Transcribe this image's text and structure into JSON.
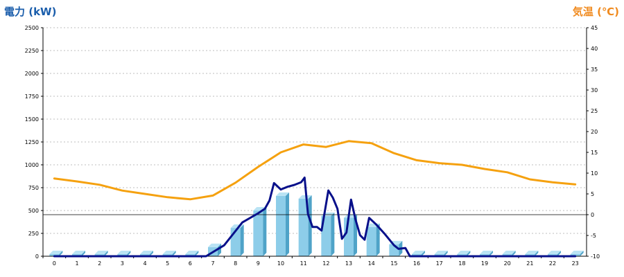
{
  "chart_data": {
    "type": "bar",
    "left_axis_title": "電力 (kW)",
    "right_axis_title": "気温 (℃)",
    "categories": [
      "0",
      "1",
      "2",
      "3",
      "4",
      "5",
      "6",
      "7",
      "8",
      "9",
      "10",
      "11",
      "12",
      "13",
      "14",
      "15",
      "16",
      "17",
      "18",
      "19",
      "20",
      "21",
      "22",
      "23"
    ],
    "left_ticks": [
      "0",
      "250",
      "500",
      "750",
      "1000",
      "1250",
      "1500",
      "1750",
      "2000",
      "2250",
      "2500"
    ],
    "right_ticks": [
      "-10",
      "-5",
      "0",
      "5",
      "10",
      "15",
      "20",
      "25",
      "30",
      "35",
      "40",
      "45"
    ],
    "ylim_left": [
      0,
      2500
    ],
    "ylim_right": [
      -10,
      45
    ],
    "grid": true,
    "series": [
      {
        "kind": "bar",
        "values": [
          0,
          0,
          0,
          0,
          0,
          0,
          0,
          100,
          310,
          500,
          660,
          630,
          440,
          420,
          320,
          130,
          0,
          0,
          0,
          0,
          0,
          0,
          0,
          0
        ]
      },
      {
        "kind": "line",
        "axis": "right",
        "x": [
          0,
          1,
          2,
          3,
          4,
          5,
          6,
          7,
          8,
          9,
          10,
          11,
          12,
          13,
          14,
          15,
          16,
          17,
          18,
          19,
          20,
          21,
          22,
          23
        ],
        "values": [
          8.7,
          8.0,
          7.2,
          5.8,
          5.0,
          4.2,
          3.7,
          4.6,
          7.7,
          11.5,
          15.0,
          16.9,
          16.3,
          17.7,
          17.2,
          14.8,
          13.1,
          12.4,
          12.0,
          11.0,
          10.2,
          8.5,
          7.8,
          7.3
        ]
      },
      {
        "kind": "line",
        "axis": "left",
        "x": [
          0,
          6.7,
          7.5,
          8.3,
          9,
          9.3,
          9.5,
          9.7,
          10,
          10.3,
          10.6,
          10.9,
          11.05,
          11.2,
          11.4,
          11.6,
          11.8,
          12.1,
          12.3,
          12.5,
          12.7,
          12.9,
          13.1,
          13.3,
          13.5,
          13.7,
          13.9,
          14.2,
          14.6,
          15,
          15.2,
          15.5,
          15.7,
          23
        ],
        "values": [
          0,
          0,
          120,
          370,
          470,
          520,
          610,
          800,
          730,
          760,
          780,
          810,
          860,
          460,
          320,
          320,
          280,
          720,
          640,
          520,
          190,
          260,
          620,
          400,
          230,
          180,
          420,
          350,
          240,
          120,
          80,
          90,
          0,
          0
        ]
      }
    ],
    "colors": {
      "bar_front": "#8dcde9",
      "bar_side": "#4fa3c8",
      "bar_top": "#b9e3f4",
      "temperature_line": "#f5a10f",
      "power_line": "#08108a",
      "left_title": "#1a5dab",
      "right_title": "#f08a1e",
      "grid": "#bdbdbd"
    }
  }
}
